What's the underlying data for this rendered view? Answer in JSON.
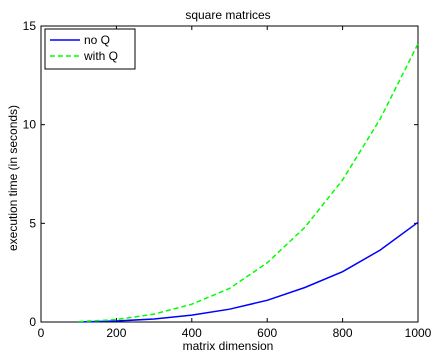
{
  "chart_data": {
    "type": "line",
    "title": "square matrices",
    "xlabel": "matrix dimension",
    "ylabel": "execution time (in seconds)",
    "xlim": [
      0,
      1000
    ],
    "ylim": [
      0,
      15
    ],
    "xticks": [
      0,
      200,
      400,
      600,
      800,
      1000
    ],
    "yticks": [
      0,
      5,
      10,
      15
    ],
    "grid": false,
    "legend_position": "top-left",
    "x": [
      100,
      200,
      300,
      400,
      500,
      600,
      700,
      800,
      900,
      1000
    ],
    "series": [
      {
        "name": "no Q",
        "color": "#0000ff",
        "dash": "solid",
        "values": [
          0.0,
          0.05,
          0.15,
          0.35,
          0.65,
          1.1,
          1.75,
          2.55,
          3.65,
          5.05
        ]
      },
      {
        "name": "with Q",
        "color": "#00ff00",
        "dash": "dashed",
        "values": [
          0.02,
          0.12,
          0.4,
          0.9,
          1.7,
          3.0,
          4.8,
          7.2,
          10.3,
          14.1
        ]
      }
    ]
  }
}
